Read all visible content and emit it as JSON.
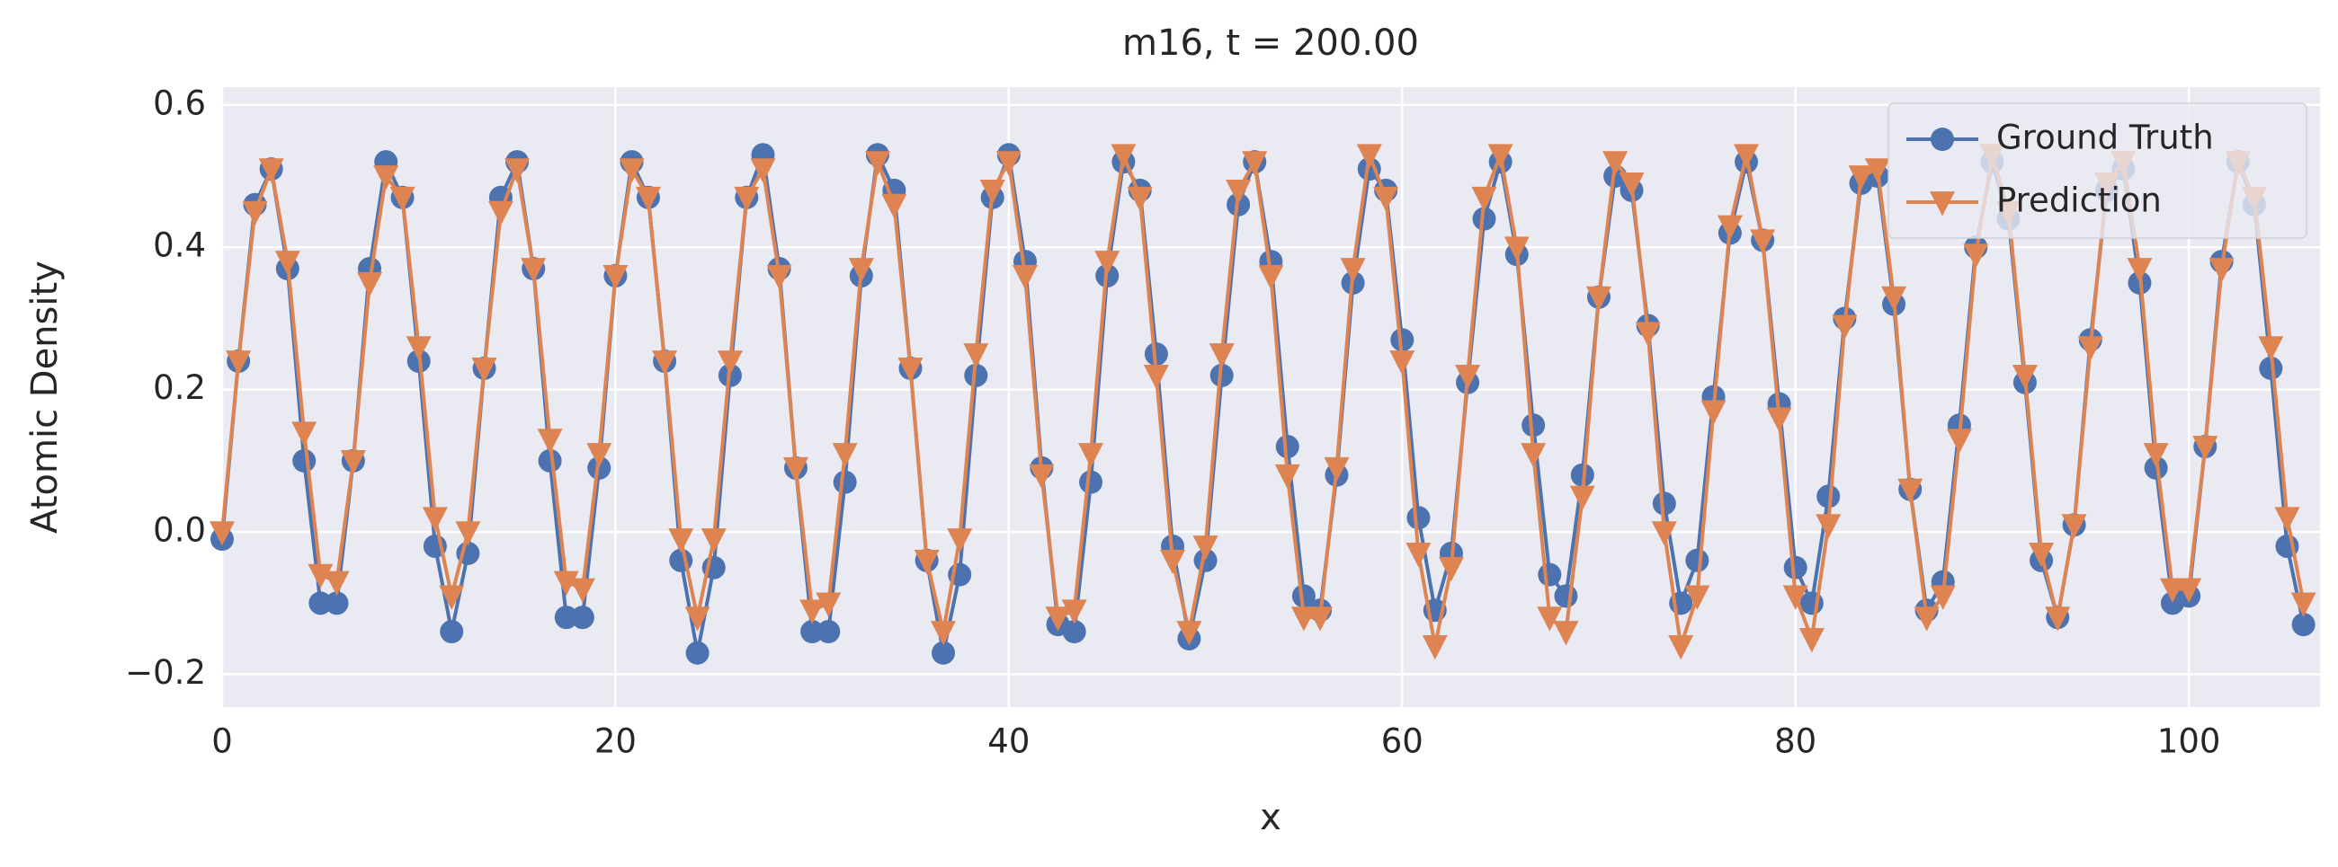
{
  "chart_data": {
    "type": "line",
    "title": "m16, t = 200.00",
    "xlabel": "x",
    "ylabel": "Atomic Density",
    "x": [
      0,
      0.83,
      1.67,
      2.5,
      3.33,
      4.17,
      5,
      5.83,
      6.67,
      7.5,
      8.33,
      9.17,
      10,
      10.83,
      11.67,
      12.5,
      13.33,
      14.17,
      15,
      15.83,
      16.67,
      17.5,
      18.33,
      19.17,
      20,
      20.83,
      21.67,
      22.5,
      23.33,
      24.17,
      25,
      25.83,
      26.67,
      27.5,
      28.33,
      29.17,
      30,
      30.83,
      31.67,
      32.5,
      33.33,
      34.17,
      35,
      35.83,
      36.67,
      37.5,
      38.33,
      39.17,
      40,
      40.83,
      41.67,
      42.5,
      43.33,
      44.17,
      45,
      45.83,
      46.67,
      47.5,
      48.33,
      49.17,
      50,
      50.83,
      51.67,
      52.5,
      53.33,
      54.17,
      55,
      55.83,
      56.67,
      57.5,
      58.33,
      59.17,
      60,
      60.83,
      61.67,
      62.5,
      63.33,
      64.17,
      65,
      65.83,
      66.67,
      67.5,
      68.33,
      69.17,
      70,
      70.83,
      71.67,
      72.5,
      73.33,
      74.17,
      75,
      75.83,
      76.67,
      77.5,
      78.33,
      79.17,
      80,
      80.83,
      81.67,
      82.5,
      83.33,
      84.17,
      85,
      85.83,
      86.67,
      87.5,
      88.33,
      89.17,
      90,
      90.83,
      91.67,
      92.5,
      93.33,
      94.17,
      95,
      95.83,
      96.67,
      97.5,
      98.33,
      99.17,
      100,
      100.83,
      101.67,
      102.5,
      103.33,
      104.17,
      105,
      105.83
    ],
    "series": [
      {
        "name": "Ground Truth",
        "color": "#4c72b0",
        "marker": "circle",
        "values": [
          -0.01,
          0.24,
          0.46,
          0.51,
          0.37,
          0.1,
          -0.1,
          -0.1,
          0.1,
          0.37,
          0.52,
          0.47,
          0.24,
          -0.02,
          -0.14,
          -0.03,
          0.23,
          0.47,
          0.52,
          0.37,
          0.1,
          -0.12,
          -0.12,
          0.09,
          0.36,
          0.52,
          0.47,
          0.24,
          -0.04,
          -0.17,
          -0.05,
          0.22,
          0.47,
          0.53,
          0.37,
          0.09,
          -0.14,
          -0.14,
          0.07,
          0.36,
          0.53,
          0.48,
          0.23,
          -0.04,
          -0.17,
          -0.06,
          0.22,
          0.47,
          0.53,
          0.38,
          0.09,
          -0.13,
          -0.14,
          0.07,
          0.36,
          0.52,
          0.48,
          0.25,
          -0.02,
          -0.15,
          -0.04,
          0.22,
          0.46,
          0.52,
          0.38,
          0.12,
          -0.09,
          -0.11,
          0.08,
          0.35,
          0.51,
          0.48,
          0.27,
          0.02,
          -0.11,
          -0.03,
          0.21,
          0.44,
          0.52,
          0.39,
          0.15,
          -0.06,
          -0.09,
          0.08,
          0.33,
          0.5,
          0.48,
          0.29,
          0.04,
          -0.1,
          -0.04,
          0.19,
          0.42,
          0.52,
          0.41,
          0.18,
          -0.05,
          -0.1,
          0.05,
          0.3,
          0.49,
          0.5,
          0.32,
          0.06,
          -0.11,
          -0.07,
          0.15,
          0.4,
          0.52,
          0.44,
          0.21,
          -0.04,
          -0.12,
          0.01,
          0.27,
          0.48,
          0.51,
          0.35,
          0.09,
          -0.1,
          -0.09,
          0.12,
          0.38,
          0.52,
          0.46,
          0.23,
          -0.02,
          -0.13
        ]
      },
      {
        "name": "Prediction",
        "color": "#dd8452",
        "marker": "triangle_down",
        "values": [
          0.0,
          0.24,
          0.45,
          0.51,
          0.38,
          0.14,
          -0.06,
          -0.07,
          0.1,
          0.35,
          0.5,
          0.47,
          0.26,
          0.02,
          -0.09,
          0.0,
          0.23,
          0.45,
          0.51,
          0.37,
          0.13,
          -0.07,
          -0.08,
          0.11,
          0.36,
          0.51,
          0.47,
          0.24,
          -0.01,
          -0.12,
          -0.01,
          0.24,
          0.47,
          0.51,
          0.36,
          0.09,
          -0.11,
          -0.1,
          0.11,
          0.37,
          0.52,
          0.46,
          0.23,
          -0.04,
          -0.14,
          -0.01,
          0.25,
          0.48,
          0.52,
          0.36,
          0.08,
          -0.12,
          -0.11,
          0.11,
          0.38,
          0.53,
          0.47,
          0.22,
          -0.04,
          -0.14,
          -0.02,
          0.25,
          0.48,
          0.52,
          0.36,
          0.08,
          -0.12,
          -0.12,
          0.09,
          0.37,
          0.53,
          0.47,
          0.24,
          -0.03,
          -0.16,
          -0.05,
          0.22,
          0.47,
          0.53,
          0.4,
          0.11,
          -0.12,
          -0.14,
          0.05,
          0.33,
          0.52,
          0.49,
          0.28,
          0.0,
          -0.16,
          -0.09,
          0.17,
          0.43,
          0.53,
          0.41,
          0.16,
          -0.09,
          -0.15,
          0.01,
          0.29,
          0.5,
          0.51,
          0.33,
          0.06,
          -0.12,
          -0.09,
          0.13,
          0.39,
          0.53,
          0.45,
          0.22,
          -0.03,
          -0.12,
          0.01,
          0.26,
          0.49,
          0.52,
          0.37,
          0.11,
          -0.08,
          -0.08,
          0.12,
          0.37,
          0.52,
          0.47,
          0.26,
          0.02,
          -0.1
        ]
      }
    ],
    "xlim": [
      0,
      106.67
    ],
    "xticks": [
      0,
      20,
      40,
      60,
      80,
      100
    ],
    "ylim": [
      -0.246,
      0.625
    ],
    "yticks": [
      {
        "value": -0.2,
        "label": "−0.2"
      },
      {
        "value": 0,
        "label": "0.0"
      },
      {
        "value": 0.2,
        "label": "0.2"
      },
      {
        "value": 0.4,
        "label": "0.4"
      },
      {
        "value": 0.6,
        "label": "0.6"
      }
    ],
    "grid": true,
    "legend": "upper right"
  }
}
